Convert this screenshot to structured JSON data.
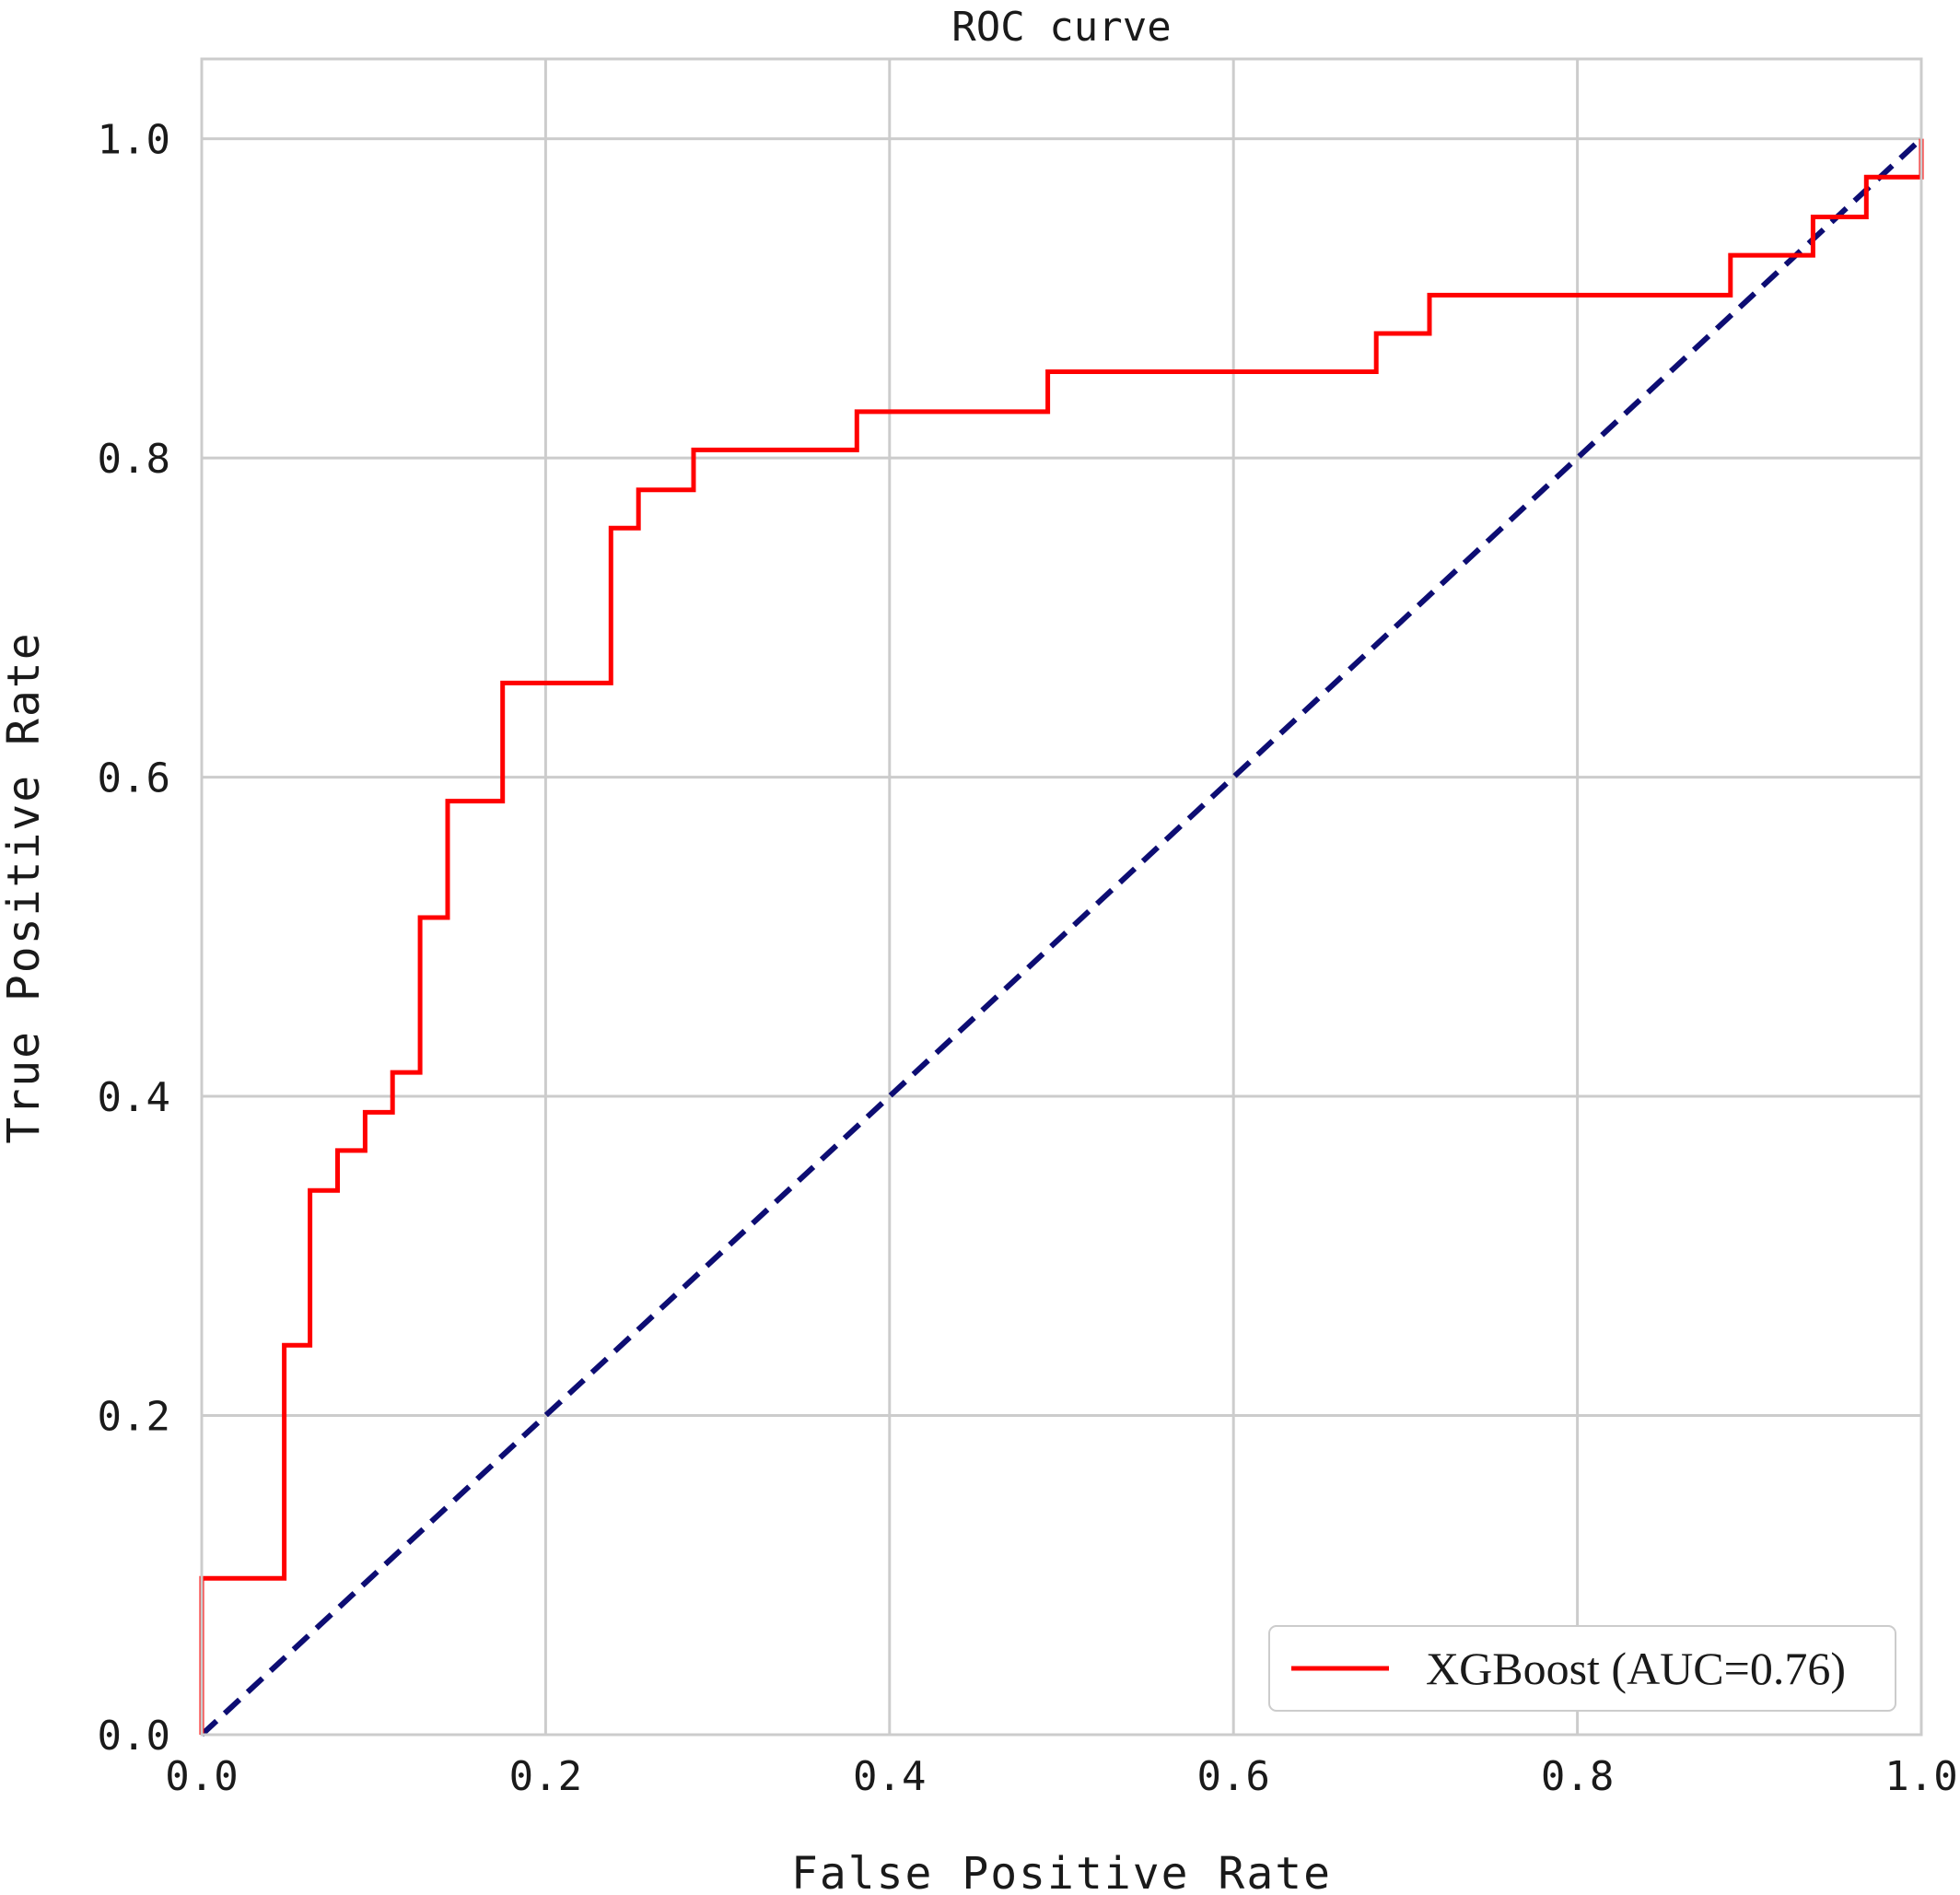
{
  "chart_data": {
    "type": "line",
    "title": "ROC curve",
    "xlabel": "False Positive Rate",
    "ylabel": "True Positive Rate",
    "xlim": [
      0.0,
      1.0
    ],
    "ylim": [
      0.0,
      1.05
    ],
    "x_ticks": [
      "0.0",
      "0.2",
      "0.4",
      "0.6",
      "0.8",
      "1.0"
    ],
    "y_ticks": [
      "0.0",
      "0.2",
      "0.4",
      "0.6",
      "0.8",
      "1.0"
    ],
    "grid": true,
    "legend_position": "bottom-right",
    "series": [
      {
        "name": "XGBoost (AUC=0.76)",
        "style": "step",
        "color": "#ff0000",
        "points": [
          [
            0.0,
            0.0
          ],
          [
            0.0,
            0.098
          ],
          [
            0.048,
            0.098
          ],
          [
            0.048,
            0.244
          ],
          [
            0.063,
            0.244
          ],
          [
            0.063,
            0.341
          ],
          [
            0.079,
            0.341
          ],
          [
            0.079,
            0.366
          ],
          [
            0.095,
            0.366
          ],
          [
            0.095,
            0.39
          ],
          [
            0.111,
            0.39
          ],
          [
            0.111,
            0.415
          ],
          [
            0.127,
            0.415
          ],
          [
            0.127,
            0.512
          ],
          [
            0.143,
            0.512
          ],
          [
            0.143,
            0.585
          ],
          [
            0.175,
            0.585
          ],
          [
            0.175,
            0.659
          ],
          [
            0.238,
            0.659
          ],
          [
            0.238,
            0.756
          ],
          [
            0.254,
            0.756
          ],
          [
            0.254,
            0.78
          ],
          [
            0.286,
            0.78
          ],
          [
            0.286,
            0.805
          ],
          [
            0.381,
            0.805
          ],
          [
            0.381,
            0.829
          ],
          [
            0.492,
            0.829
          ],
          [
            0.492,
            0.854
          ],
          [
            0.683,
            0.854
          ],
          [
            0.683,
            0.878
          ],
          [
            0.714,
            0.878
          ],
          [
            0.714,
            0.902
          ],
          [
            0.889,
            0.902
          ],
          [
            0.889,
            0.927
          ],
          [
            0.937,
            0.927
          ],
          [
            0.937,
            0.951
          ],
          [
            0.968,
            0.951
          ],
          [
            0.968,
            0.976
          ],
          [
            1.0,
            0.976
          ],
          [
            1.0,
            1.0
          ]
        ]
      },
      {
        "style": "dashed",
        "color": "#0d0d73",
        "points": [
          [
            0.0,
            0.0
          ],
          [
            1.0,
            1.0
          ]
        ]
      }
    ]
  }
}
